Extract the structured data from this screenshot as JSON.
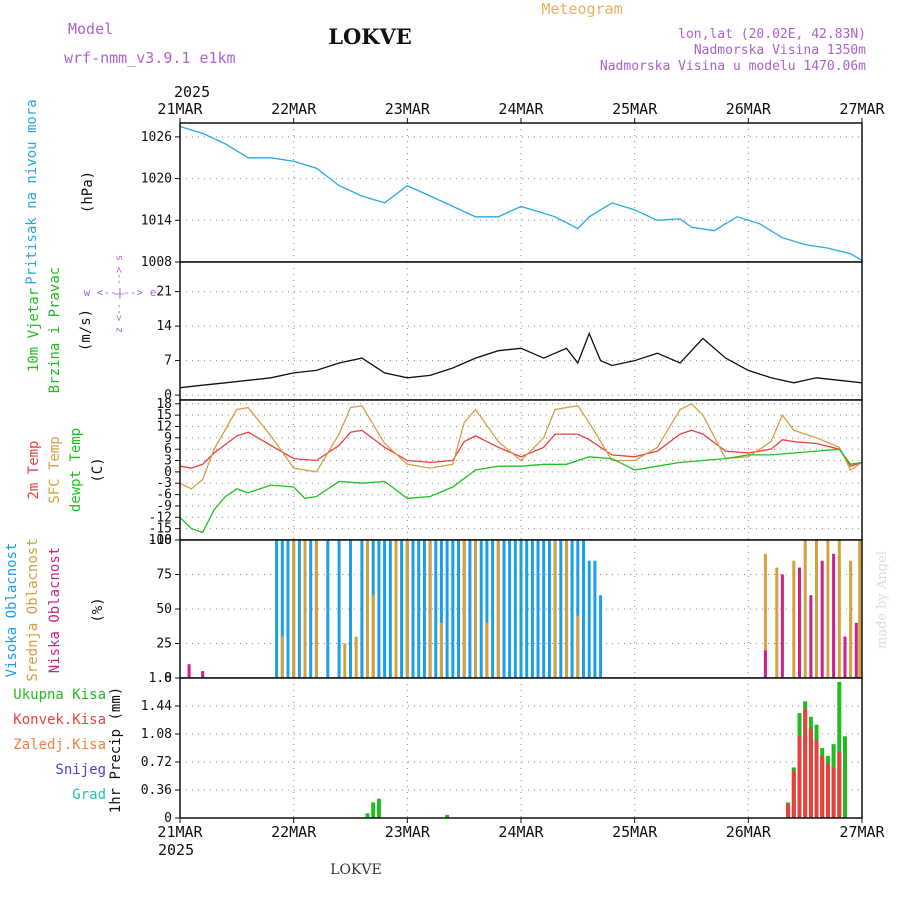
{
  "header": {
    "station": "LOKVE",
    "model_label": "Model",
    "model_name": "wrf-nmm_v3.9.1  e1km",
    "title": "Meteogram",
    "lonlat": "lon,lat (20.02E, 42.83N)",
    "elevation": "Nadmorska Visina 1350m",
    "model_elevation": "Nadmorska Visina u modelu 1470.06m",
    "footer_station": "LOKVE",
    "watermark": "made by Angel"
  },
  "colors": {
    "pressure": "#29a8e0",
    "wind_label": "#22bb22",
    "temp2m": "#e84040",
    "sfc": "#d4a040",
    "dewpt": "#22c022",
    "high_cloud": "#1aa0e8",
    "mid_cloud": "#d4a040",
    "low_cloud": "#cc2288",
    "total_precip": "#22bb22",
    "conv_precip": "#e84040",
    "freezing": "#f08040",
    "snow": "#4444dd",
    "hail": "#22c0b0",
    "purple_label": "#b060d0",
    "orange_label": "#e8b060"
  },
  "time_axis": {
    "year": "2025",
    "start_day": 21,
    "end_day": 27,
    "labels": [
      "21MAR",
      "22MAR",
      "23MAR",
      "24MAR",
      "25MAR",
      "26MAR",
      "27MAR"
    ]
  },
  "chart_data": [
    {
      "id": "pressure",
      "type": "line",
      "title": "",
      "ylabel_lines": [
        "Pritisak na nivou mora",
        "(hPa)"
      ],
      "ylim": [
        1008,
        1028
      ],
      "yticks": [
        "1008",
        "1014",
        "1020",
        "1026"
      ],
      "grid": true,
      "series": [
        {
          "name": "Pritisak na nivou mora",
          "x_days": [
            21.0,
            21.1,
            21.2,
            21.4,
            21.6,
            21.8,
            22.0,
            22.2,
            22.4,
            22.6,
            22.8,
            23.0,
            23.2,
            23.4,
            23.6,
            23.8,
            24.0,
            24.2,
            24.3,
            24.5,
            24.6,
            24.8,
            25.0,
            25.2,
            25.4,
            25.5,
            25.7,
            25.9,
            26.1,
            26.3,
            26.5,
            26.7,
            26.9,
            27.0
          ],
          "values": [
            1027.5,
            1027.0,
            1026.5,
            1025.0,
            1023.0,
            1023.0,
            1022.5,
            1021.5,
            1019.0,
            1017.5,
            1016.5,
            1019.0,
            1017.5,
            1016.0,
            1014.5,
            1014.5,
            1016.0,
            1015.0,
            1014.5,
            1012.8,
            1014.5,
            1016.5,
            1015.5,
            1014.0,
            1014.2,
            1013.0,
            1012.5,
            1014.5,
            1013.5,
            1011.5,
            1010.5,
            1010.0,
            1009.2,
            1008.2
          ]
        }
      ]
    },
    {
      "id": "wind",
      "type": "line",
      "title": "",
      "ylabel_lines": [
        "10m Vjetar",
        "Brzina i Pravac",
        "(m/s)"
      ],
      "compass_label": "w <--|--> e",
      "compass_vertical": "z <-- | --> s",
      "ylim": [
        -1,
        27
      ],
      "yticks": [
        "0",
        "7",
        "14",
        "21"
      ],
      "grid": true,
      "series": [
        {
          "name": "10m Vjetar",
          "x_days": [
            21.0,
            21.2,
            21.4,
            21.6,
            21.8,
            22.0,
            22.2,
            22.4,
            22.6,
            22.8,
            23.0,
            23.2,
            23.4,
            23.6,
            23.8,
            24.0,
            24.2,
            24.4,
            24.5,
            24.6,
            24.7,
            24.8,
            25.0,
            25.2,
            25.4,
            25.6,
            25.8,
            26.0,
            26.2,
            26.4,
            26.6,
            26.8,
            27.0
          ],
          "values": [
            1.5,
            2.0,
            2.5,
            3.0,
            3.5,
            4.5,
            5.0,
            6.5,
            7.5,
            4.5,
            3.5,
            4.0,
            5.5,
            7.5,
            9.0,
            9.5,
            7.5,
            9.5,
            6.5,
            12.5,
            7.0,
            6.0,
            7.0,
            8.5,
            6.5,
            11.5,
            7.5,
            5.0,
            3.5,
            2.5,
            3.5,
            3.0,
            2.5
          ]
        }
      ]
    },
    {
      "id": "temperature",
      "type": "line",
      "title": "",
      "ylabel_lines": [
        "2m Temp",
        "SFC Temp",
        "dewpt Temp",
        "(C)"
      ],
      "ylim": [
        -18,
        19
      ],
      "yticks": [
        "18",
        "15",
        "12",
        "9",
        "6",
        "3",
        "0",
        "-3",
        "-6",
        "-9",
        "-12",
        "-15",
        "-18"
      ],
      "grid": true,
      "series": [
        {
          "name": "2m Temp",
          "x_days": [
            21.0,
            21.1,
            21.2,
            21.3,
            21.5,
            21.6,
            21.8,
            22.0,
            22.2,
            22.4,
            22.5,
            22.6,
            22.8,
            23.0,
            23.2,
            23.4,
            23.5,
            23.6,
            23.8,
            24.0,
            24.2,
            24.3,
            24.5,
            24.6,
            24.8,
            25.0,
            25.2,
            25.4,
            25.5,
            25.6,
            25.8,
            26.0,
            26.2,
            26.3,
            26.4,
            26.6,
            26.8,
            26.9,
            27.0
          ],
          "values": [
            1.5,
            1.0,
            2.0,
            5.0,
            9.5,
            10.5,
            7.0,
            3.5,
            3.0,
            7.0,
            10.5,
            11.0,
            6.5,
            3.0,
            2.5,
            3.0,
            8.0,
            9.5,
            6.5,
            4.0,
            6.5,
            10.0,
            10.0,
            8.5,
            4.5,
            4.0,
            5.5,
            10.0,
            11.0,
            10.0,
            5.5,
            5.0,
            6.0,
            8.5,
            8.0,
            7.5,
            6.0,
            1.5,
            2.5
          ]
        },
        {
          "name": "SFC Temp",
          "x_days": [
            21.0,
            21.1,
            21.2,
            21.3,
            21.5,
            21.6,
            21.8,
            22.0,
            22.2,
            22.4,
            22.5,
            22.6,
            22.8,
            23.0,
            23.2,
            23.4,
            23.5,
            23.6,
            23.8,
            24.0,
            24.2,
            24.3,
            24.5,
            24.6,
            24.8,
            25.0,
            25.2,
            25.4,
            25.5,
            25.6,
            25.8,
            26.0,
            26.2,
            26.3,
            26.4,
            26.6,
            26.8,
            26.9,
            27.0
          ],
          "values": [
            -3.0,
            -4.5,
            -2.0,
            6.0,
            16.5,
            17.0,
            9.5,
            1.0,
            0.0,
            10.0,
            17.0,
            17.5,
            7.5,
            2.0,
            1.0,
            2.0,
            13.0,
            16.5,
            8.0,
            3.0,
            9.0,
            16.5,
            17.5,
            13.0,
            3.0,
            3.0,
            6.5,
            16.5,
            18.0,
            15.0,
            3.5,
            4.0,
            8.0,
            15.0,
            11.0,
            9.0,
            6.5,
            0.5,
            2.5
          ]
        },
        {
          "name": "dewpt Temp",
          "x_days": [
            21.0,
            21.1,
            21.2,
            21.3,
            21.4,
            21.5,
            21.6,
            21.8,
            22.0,
            22.1,
            22.2,
            22.4,
            22.6,
            22.8,
            23.0,
            23.2,
            23.4,
            23.6,
            23.8,
            24.0,
            24.2,
            24.4,
            24.6,
            24.8,
            25.0,
            25.2,
            25.4,
            25.6,
            25.8,
            26.0,
            26.2,
            26.4,
            26.6,
            26.8,
            26.9,
            27.0
          ],
          "values": [
            -12.0,
            -15.0,
            -16.0,
            -10.0,
            -6.5,
            -4.5,
            -5.5,
            -3.5,
            -4.0,
            -7.0,
            -6.5,
            -2.5,
            -3.0,
            -2.5,
            -7.0,
            -6.5,
            -4.0,
            0.5,
            1.5,
            1.5,
            2.0,
            2.0,
            4.0,
            3.5,
            0.5,
            1.5,
            2.5,
            3.0,
            3.5,
            4.5,
            4.5,
            5.0,
            5.5,
            6.0,
            2.0,
            2.5
          ]
        }
      ]
    },
    {
      "id": "cloud",
      "type": "bar",
      "title": "",
      "ylabel_lines": [
        "Visoka Oblacnost",
        "Srednja Oblacnost",
        "Niska Oblacnost",
        "(%)"
      ],
      "ylim": [
        0,
        100
      ],
      "yticks": [
        "0",
        "25",
        "50",
        "75",
        "100"
      ],
      "grid": true,
      "series": [
        {
          "name": "Visoka Oblacnost",
          "x_days": [
            21.85,
            21.9,
            21.95,
            22.0,
            22.05,
            22.1,
            22.15,
            22.2,
            22.3,
            22.4,
            22.5,
            22.6,
            22.7,
            22.75,
            22.8,
            22.85,
            22.9,
            22.95,
            23.0,
            23.05,
            23.1,
            23.15,
            23.2,
            23.25,
            23.3,
            23.35,
            23.4,
            23.45,
            23.5,
            23.55,
            23.6,
            23.65,
            23.7,
            23.75,
            23.8,
            23.85,
            23.9,
            23.95,
            24.0,
            24.05,
            24.1,
            24.15,
            24.2,
            24.25,
            24.3,
            24.35,
            24.4,
            24.45,
            24.5,
            24.55,
            24.6,
            24.65,
            24.7
          ],
          "values": [
            100,
            100,
            100,
            100,
            100,
            100,
            100,
            100,
            100,
            100,
            100,
            100,
            100,
            100,
            100,
            100,
            100,
            100,
            100,
            100,
            100,
            100,
            100,
            100,
            100,
            100,
            100,
            100,
            100,
            100,
            100,
            100,
            100,
            100,
            100,
            100,
            100,
            100,
            100,
            100,
            100,
            100,
            100,
            100,
            100,
            100,
            100,
            100,
            100,
            100,
            85,
            85,
            60
          ]
        },
        {
          "name": "Srednja Oblacnost",
          "x_days": [
            21.9,
            22.0,
            22.1,
            22.2,
            22.45,
            22.55,
            22.65,
            22.7,
            22.9,
            23.0,
            23.2,
            23.3,
            23.5,
            23.6,
            23.7,
            23.8,
            24.3,
            24.4,
            24.5,
            26.15,
            26.25,
            26.4,
            26.5,
            26.6,
            26.7,
            26.8,
            26.9,
            26.98
          ],
          "values": [
            30,
            100,
            100,
            100,
            25,
            30,
            100,
            60,
            100,
            100,
            100,
            40,
            100,
            100,
            40,
            100,
            100,
            100,
            45,
            90,
            80,
            85,
            100,
            100,
            100,
            100,
            85,
            100
          ]
        },
        {
          "name": "Niska Oblacnost",
          "x_days": [
            21.08,
            21.2,
            26.15,
            26.3,
            26.45,
            26.55,
            26.65,
            26.75,
            26.85,
            26.95
          ],
          "values": [
            10,
            5,
            20,
            75,
            80,
            60,
            85,
            90,
            30,
            40
          ]
        }
      ]
    },
    {
      "id": "precip",
      "type": "bar",
      "title": "",
      "ylabel_lines": [
        "1hr Precip (mm)"
      ],
      "legend_lines": [
        "Ukupna Kisa",
        "Konvek.Kisa",
        "Zaledj.Kisa",
        "Snijeg",
        "Grad"
      ],
      "ylim": [
        0,
        1.8
      ],
      "yticks": [
        "0",
        "0.36",
        "0.72",
        "1.08",
        "1.44",
        "1.8"
      ],
      "grid": true,
      "series": [
        {
          "name": "Ukupna Kisa",
          "x_days": [
            22.65,
            22.7,
            22.75,
            23.35,
            26.35,
            26.4,
            26.45,
            26.5,
            26.55,
            26.6,
            26.65,
            26.7,
            26.75,
            26.8,
            26.85
          ],
          "values": [
            0.06,
            0.2,
            0.25,
            0.04,
            0.2,
            0.65,
            1.35,
            1.5,
            1.3,
            1.2,
            0.9,
            0.8,
            0.95,
            1.75,
            1.05
          ]
        },
        {
          "name": "Konvek.Kisa",
          "x_days": [
            26.35,
            26.4,
            26.45,
            26.5,
            26.55,
            26.6,
            26.65,
            26.7,
            26.75,
            26.8
          ],
          "values": [
            0.18,
            0.6,
            1.05,
            1.4,
            1.15,
            1.0,
            0.8,
            0.7,
            0.65,
            0.85
          ]
        }
      ]
    }
  ]
}
